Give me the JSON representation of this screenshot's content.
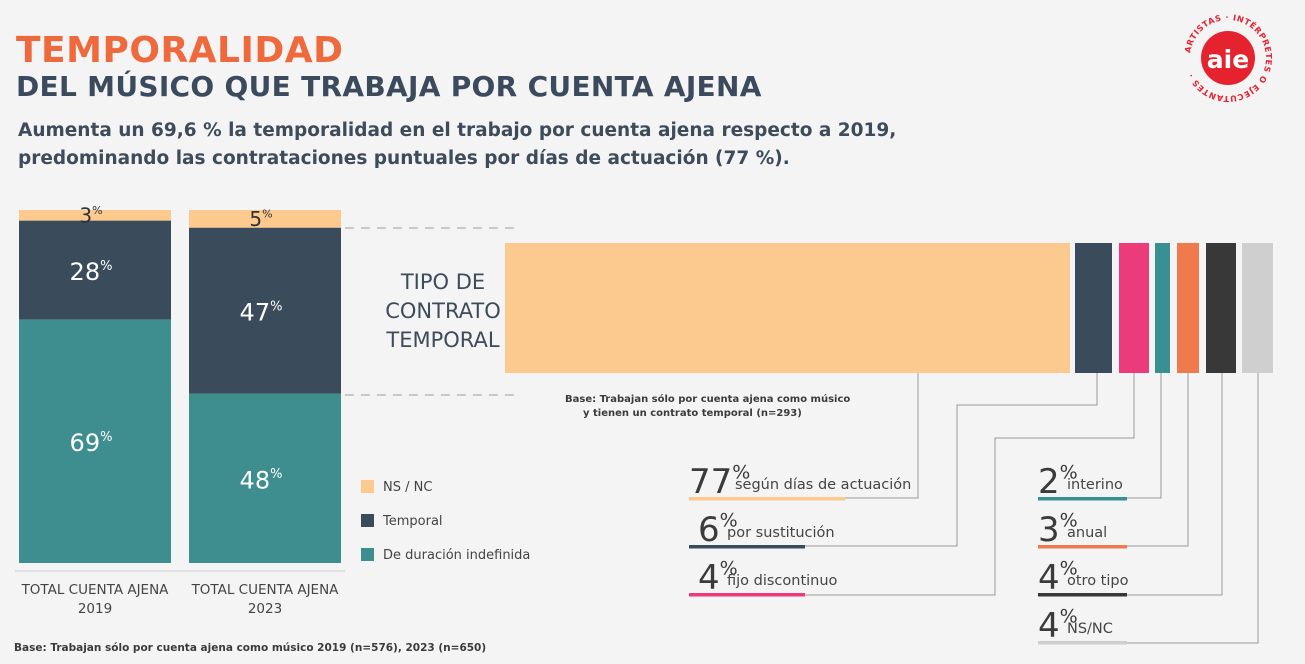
{
  "header": {
    "title": "TEMPORALIDAD",
    "subtitle": "DEL MÚSICO QUE TRABAJA POR CUENTA AJENA",
    "description_line1": "Aumenta un 69,6 % la temporalidad en el trabajo por cuenta ajena respecto a 2019,",
    "description_line2": "predominando las contrataciones puntuales por días de actuación (77 %)."
  },
  "logo": {
    "text": "aie",
    "ring_text": "ARTISTAS · INTÉRPRETES O EJECUTANTES ·",
    "color": "#e5232f"
  },
  "footer": "Base: Trabajan sólo por cuenta ajena como músico 2019 (n=576), 2023 (n=650)",
  "colors": {
    "ns_nc": "#fcc98f",
    "temporal": "#3a4c5c",
    "indefinida": "#3e8e90",
    "sustitucion": "#3a4c5c",
    "fijo_discontinuo": "#ec3b7b",
    "interino": "#3a8f93",
    "anual": "#ee7a4e",
    "otro_tipo": "#383838",
    "ns_nc_light": "#cfcfcf"
  },
  "chart_data": [
    {
      "type": "bar",
      "stacked": true,
      "percent_suffix": "%",
      "categories": [
        "TOTAL CUENTA AJENA 2019",
        "TOTAL CUENTA AJENA 2023"
      ],
      "category_lines": [
        [
          "TOTAL CUENTA AJENA",
          "2019"
        ],
        [
          "TOTAL CUENTA AJENA",
          "2023"
        ]
      ],
      "series": [
        {
          "name": "De duración indefinida",
          "key": "indefinida",
          "values": [
            69,
            48
          ]
        },
        {
          "name": "Temporal",
          "key": "temporal",
          "values": [
            28,
            47
          ]
        },
        {
          "name": "NS / NC",
          "key": "ns_nc",
          "values": [
            3,
            5
          ]
        }
      ],
      "legend": [
        {
          "name": "NS / NC",
          "key": "ns_nc"
        },
        {
          "name": "Temporal",
          "key": "temporal"
        },
        {
          "name": "De duración indefinida",
          "key": "indefinida"
        }
      ],
      "legend_position": "right"
    },
    {
      "type": "bar",
      "orientation": "horizontal-stacked",
      "label_lines": [
        "TIPO DE",
        "CONTRATO",
        "TEMPORAL"
      ],
      "base_note_lines": [
        "Base:  Trabajan sólo por cuenta ajena como músico",
        "y tienen un contrato temporal (n=293)"
      ],
      "categories": [
        "según días de actuación",
        "por sustitución",
        "fijo discontinuo",
        "interino",
        "anual",
        "otro tipo",
        "NS/NC"
      ],
      "keys": [
        "ns_nc",
        "sustitucion",
        "fijo_discontinuo",
        "interino",
        "anual",
        "otro_tipo",
        "ns_nc_light"
      ],
      "values": [
        77,
        6,
        4,
        2,
        3,
        4,
        4
      ]
    }
  ]
}
